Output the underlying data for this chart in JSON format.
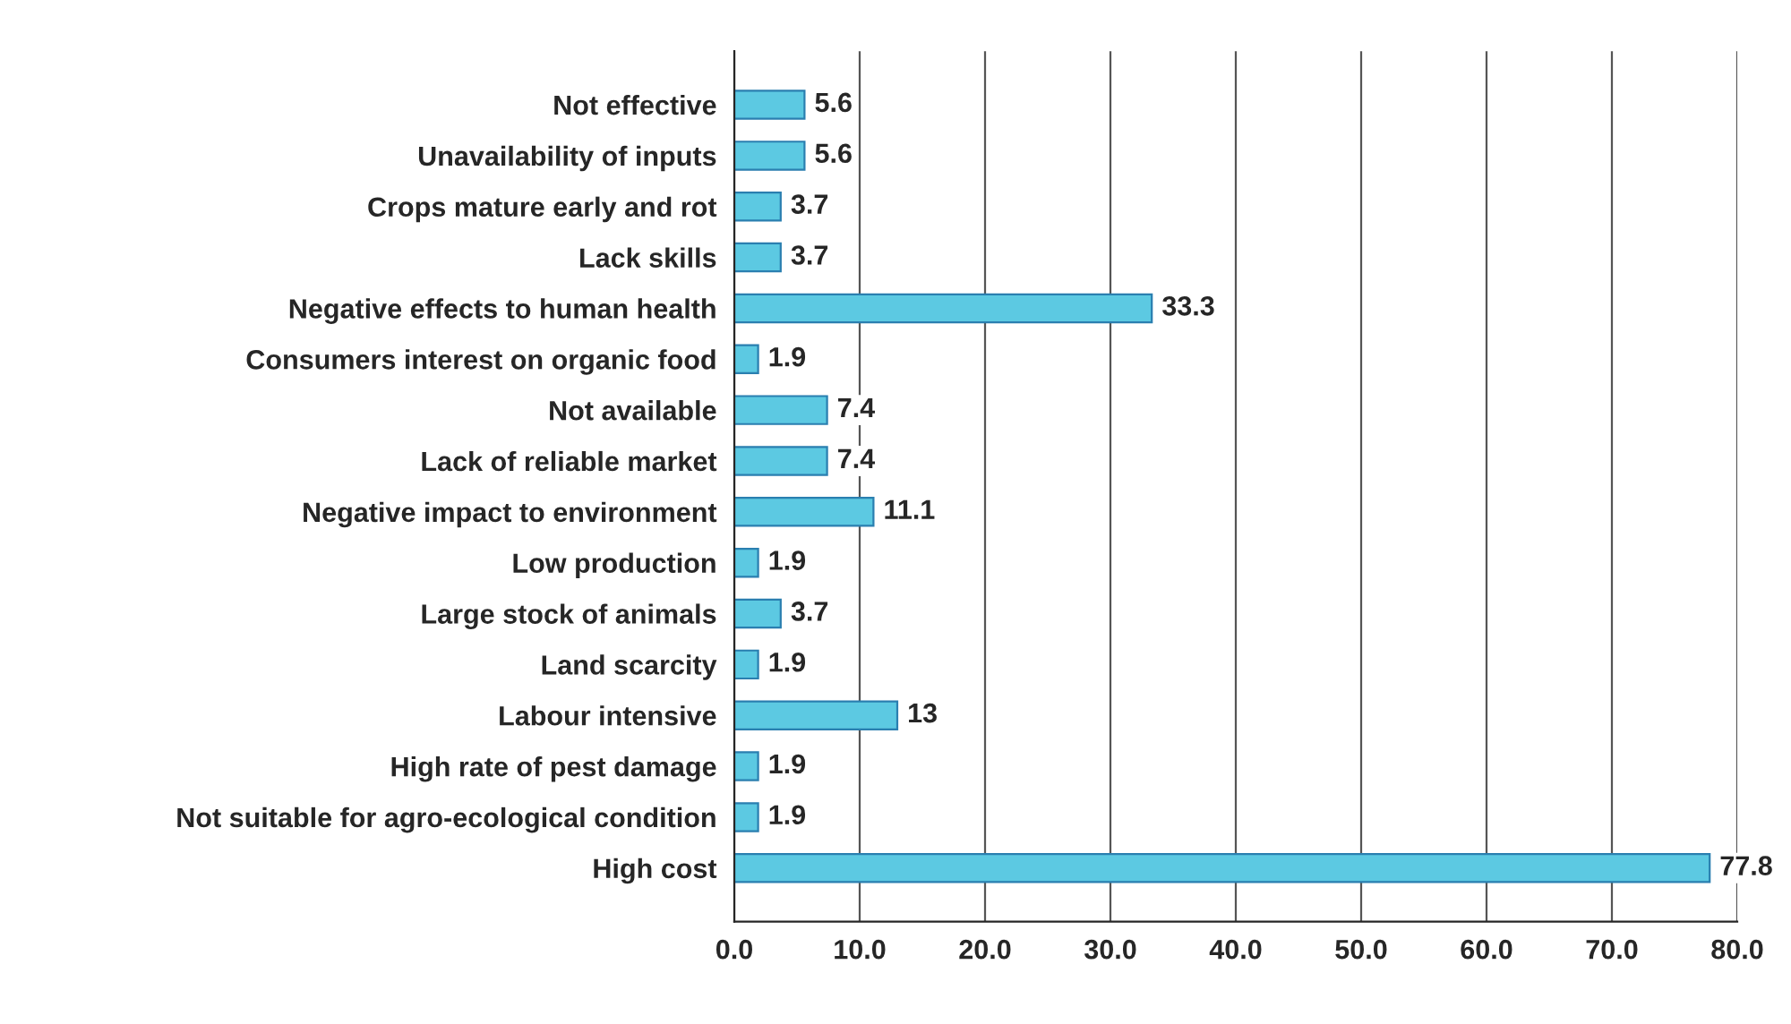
{
  "chart_data": {
    "type": "bar",
    "orientation": "horizontal",
    "categories": [
      "Not effective",
      "Unavailability of inputs",
      "Crops mature early and rot",
      "Lack skills",
      "Negative effects to human health",
      "Consumers interest on organic food",
      "Not available",
      "Lack of reliable market",
      "Negative impact to environment",
      "Low production",
      "Large stock of animals",
      "Land scarcity",
      "Labour intensive",
      "High rate of pest damage",
      "Not suitable for agro-ecological condition",
      "High cost"
    ],
    "values": [
      5.6,
      5.6,
      3.7,
      3.7,
      33.3,
      1.9,
      7.4,
      7.4,
      11.1,
      1.9,
      3.7,
      1.9,
      13,
      1.9,
      1.9,
      77.8
    ],
    "color": "#5cc9e2",
    "xlim": [
      0,
      80
    ],
    "xticks": [
      {
        "value": 0,
        "label": "0.0"
      },
      {
        "value": 10,
        "label": "10.0"
      },
      {
        "value": 20,
        "label": "20.0"
      },
      {
        "value": 30,
        "label": "30.0"
      },
      {
        "value": 40,
        "label": "40.0"
      },
      {
        "value": 50,
        "label": "50.0"
      },
      {
        "value": 60,
        "label": "60.0"
      },
      {
        "value": 70,
        "label": "70.0"
      },
      {
        "value": 80,
        "label": "80.0"
      }
    ],
    "grid": "x",
    "data_labels": true
  }
}
